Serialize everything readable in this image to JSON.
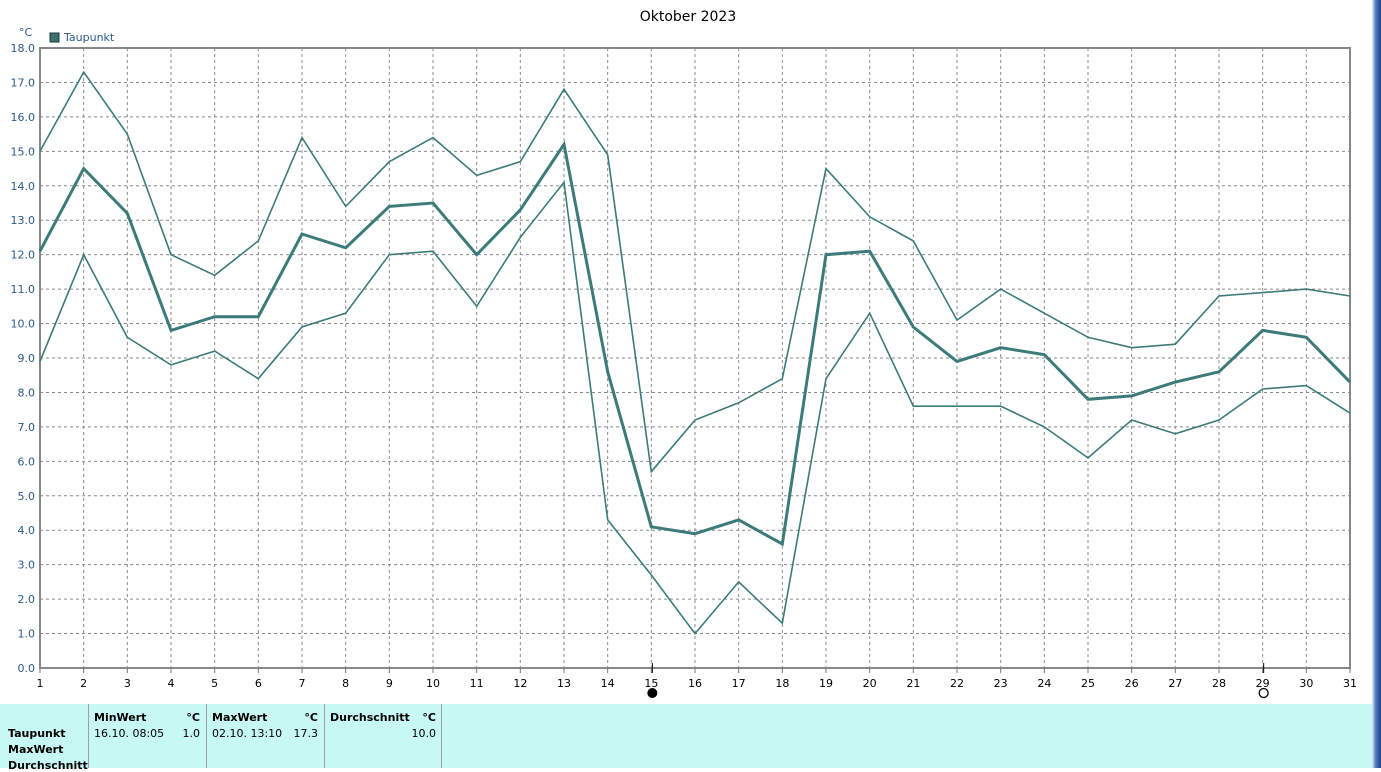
{
  "chart_data": {
    "type": "line",
    "title": "Oktober 2023",
    "y_unit": "°C",
    "legend": [
      "Taupunkt"
    ],
    "legend_position": "top-left",
    "ylim": [
      0.0,
      18.0
    ],
    "y_ticks": [
      "0.0",
      "1.0",
      "2.0",
      "3.0",
      "4.0",
      "5.0",
      "6.0",
      "7.0",
      "8.0",
      "9.0",
      "10.0",
      "11.0",
      "12.0",
      "13.0",
      "14.0",
      "15.0",
      "16.0",
      "17.0",
      "18.0"
    ],
    "x": [
      1,
      2,
      3,
      4,
      5,
      6,
      7,
      8,
      9,
      10,
      11,
      12,
      13,
      14,
      15,
      16,
      17,
      18,
      19,
      20,
      21,
      22,
      23,
      24,
      25,
      26,
      27,
      28,
      29,
      30,
      31
    ],
    "grid": true,
    "series": [
      {
        "role": "max",
        "values": [
          15.0,
          17.3,
          15.5,
          12.0,
          11.4,
          12.4,
          15.4,
          13.4,
          14.7,
          15.4,
          14.3,
          14.7,
          16.8,
          14.9,
          5.7,
          7.2,
          7.7,
          8.4,
          14.5,
          13.1,
          12.4,
          10.1,
          11.0,
          10.3,
          9.6,
          9.3,
          9.4,
          10.8,
          10.9,
          11.0,
          10.8
        ]
      },
      {
        "role": "mean",
        "name": "Taupunkt",
        "values": [
          12.1,
          14.5,
          13.2,
          9.8,
          10.2,
          10.2,
          12.6,
          12.2,
          13.4,
          13.5,
          12.0,
          13.3,
          15.2,
          8.6,
          4.1,
          3.9,
          4.3,
          3.6,
          12.0,
          12.1,
          9.9,
          8.9,
          9.3,
          9.1,
          7.8,
          7.9,
          8.3,
          8.6,
          9.8,
          9.6,
          8.3
        ]
      },
      {
        "role": "min",
        "values": [
          8.9,
          12.0,
          9.6,
          8.8,
          9.2,
          8.4,
          9.9,
          10.3,
          12.0,
          12.1,
          10.5,
          12.5,
          14.1,
          4.3,
          2.7,
          1.0,
          2.5,
          1.3,
          8.4,
          10.3,
          7.6,
          7.6,
          7.6,
          7.0,
          6.1,
          7.2,
          6.8,
          7.2,
          8.1,
          8.2,
          7.4
        ]
      }
    ],
    "markers": [
      {
        "day": 15,
        "symbol": "new-moon-icon"
      },
      {
        "day": 29,
        "symbol": "full-moon-icon"
      }
    ],
    "colors": {
      "series": "#3d7a7a",
      "grid": "#8a8a8a",
      "axis": "#888888"
    }
  },
  "summary": {
    "row_labels": [
      "Taupunkt",
      "MaxWert",
      "Durchschnitt"
    ],
    "columns": [
      {
        "header": "MinWert",
        "unit": "°C",
        "datetime": "16.10.  08:05",
        "value": "1.0"
      },
      {
        "header": "MaxWert",
        "unit": "°C",
        "datetime": "02.10.  13:10",
        "value": "17.3"
      },
      {
        "header": "Durchschnitt",
        "unit": "°C",
        "datetime": "",
        "value": "10.0"
      }
    ],
    "bg_color": "#c8f8f4"
  }
}
